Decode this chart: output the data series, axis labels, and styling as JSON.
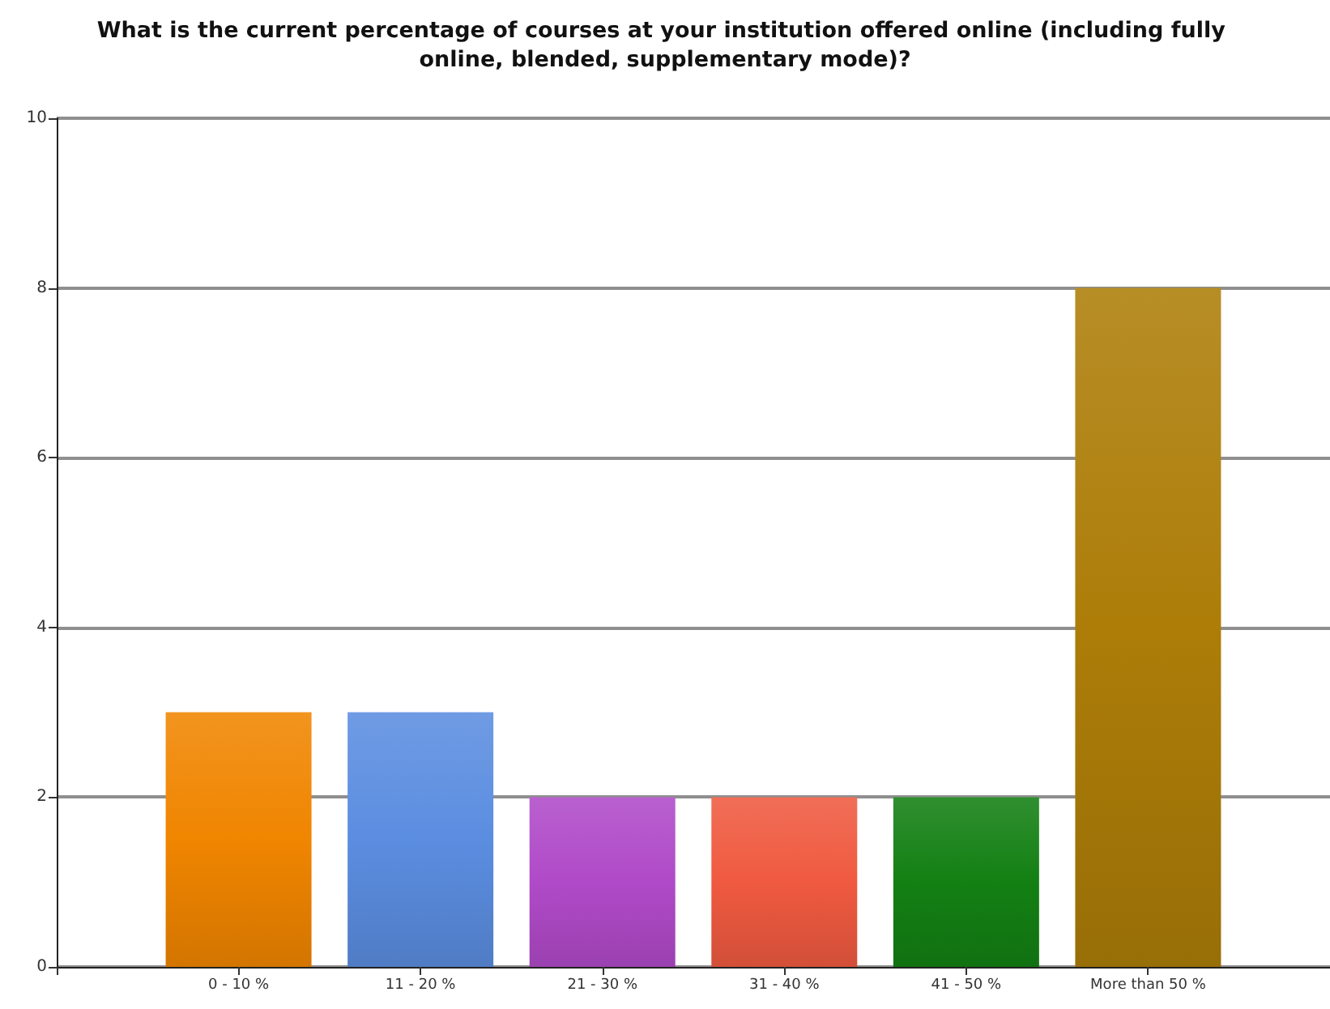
{
  "chart_data": {
    "type": "bar",
    "title": "What is the current percentage of courses at your institution offered online (including fully online, blended, supplementary mode)?",
    "categories": [
      "0 - 10 %",
      "11 - 20 %",
      "21 - 30 %",
      "31 - 40 %",
      "41 - 50 %",
      "More than 50 %"
    ],
    "values": [
      3,
      3,
      2,
      2,
      2,
      8
    ],
    "colors": [
      "#f08500",
      "#5b8de0",
      "#b04ac8",
      "#ef5a40",
      "#138013",
      "#ad7d08"
    ],
    "ylim": [
      0,
      10
    ],
    "yticks": [
      0,
      2,
      4,
      6,
      8,
      10
    ],
    "grid": "y"
  }
}
